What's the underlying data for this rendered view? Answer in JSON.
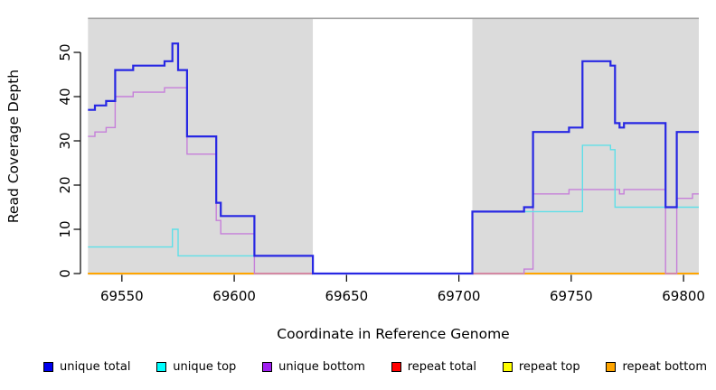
{
  "chart_data": {
    "type": "line",
    "subtype": "step",
    "title": "",
    "xlabel": "Coordinate in Reference Genome",
    "ylabel": "Read Coverage Depth",
    "xlim": [
      69534.9,
      69806.8
    ],
    "ylim": [
      0,
      57.7
    ],
    "xticks": [
      69550,
      69600,
      69650,
      69700,
      69750,
      69800
    ],
    "yticks": [
      0,
      10,
      20,
      30,
      40,
      50
    ],
    "grid": false,
    "legend_position": "bottom",
    "shaded_regions": [
      [
        69534.9,
        69635
      ],
      [
        69706,
        69806.8
      ]
    ],
    "shade_color": "#DBDBDB",
    "series": [
      {
        "name": "repeat total",
        "color": "#E03030",
        "points": [
          [
            69534.9,
            0
          ],
          [
            69806.8,
            0
          ]
        ]
      },
      {
        "name": "repeat top",
        "color": "#F3F300",
        "points": [
          [
            69534.9,
            0
          ],
          [
            69806.8,
            0
          ]
        ]
      },
      {
        "name": "repeat bottom",
        "color": "#FFA500",
        "points": [
          [
            69534.9,
            0
          ],
          [
            69806.8,
            0
          ]
        ]
      },
      {
        "name": "unique bottom",
        "color": "#C67FD9",
        "points": [
          [
            69534.9,
            31
          ],
          [
            69538,
            32
          ],
          [
            69543,
            33
          ],
          [
            69547,
            40
          ],
          [
            69555,
            41
          ],
          [
            69569,
            42
          ],
          [
            69579,
            27
          ],
          [
            69592,
            12
          ],
          [
            69594,
            9
          ],
          [
            69609,
            0
          ],
          [
            69729,
            1
          ],
          [
            69733,
            18
          ],
          [
            69749,
            19
          ],
          [
            69771.5,
            18
          ],
          [
            69773.5,
            19
          ],
          [
            69792,
            0
          ],
          [
            69797,
            17
          ],
          [
            69804,
            18
          ],
          [
            69806.8,
            18
          ]
        ]
      },
      {
        "name": "unique top",
        "color": "#5FDFE8",
        "points": [
          [
            69534.9,
            6
          ],
          [
            69572.5,
            10
          ],
          [
            69575,
            4
          ],
          [
            69635,
            0
          ],
          [
            69706,
            14
          ],
          [
            69755,
            29
          ],
          [
            69767.5,
            28
          ],
          [
            69769.5,
            15
          ],
          [
            69806.8,
            15
          ]
        ]
      },
      {
        "name": "unique total",
        "color": "#2727E3",
        "points": [
          [
            69534.9,
            37
          ],
          [
            69538,
            38
          ],
          [
            69543,
            39
          ],
          [
            69547,
            46
          ],
          [
            69555,
            47
          ],
          [
            69569,
            48
          ],
          [
            69572.5,
            52
          ],
          [
            69575,
            46
          ],
          [
            69579,
            31
          ],
          [
            69592,
            16
          ],
          [
            69594,
            13
          ],
          [
            69609,
            4
          ],
          [
            69635,
            0
          ],
          [
            69706,
            14
          ],
          [
            69729,
            15
          ],
          [
            69733,
            32
          ],
          [
            69749,
            33
          ],
          [
            69755,
            48
          ],
          [
            69767.5,
            47
          ],
          [
            69769.5,
            34
          ],
          [
            69771.5,
            33
          ],
          [
            69773.5,
            34
          ],
          [
            69792,
            15
          ],
          [
            69797,
            32
          ],
          [
            69806.8,
            32
          ]
        ]
      }
    ],
    "legend": [
      {
        "label": "unique total",
        "color": "#0000EE"
      },
      {
        "label": "unique top",
        "color": "#00FFFF"
      },
      {
        "label": "unique bottom",
        "color": "#A020F0"
      },
      {
        "label": "repeat total",
        "color": "#FF0000"
      },
      {
        "label": "repeat top",
        "color": "#FFFF00"
      },
      {
        "label": "repeat bottom",
        "color": "#FFA500"
      }
    ]
  }
}
